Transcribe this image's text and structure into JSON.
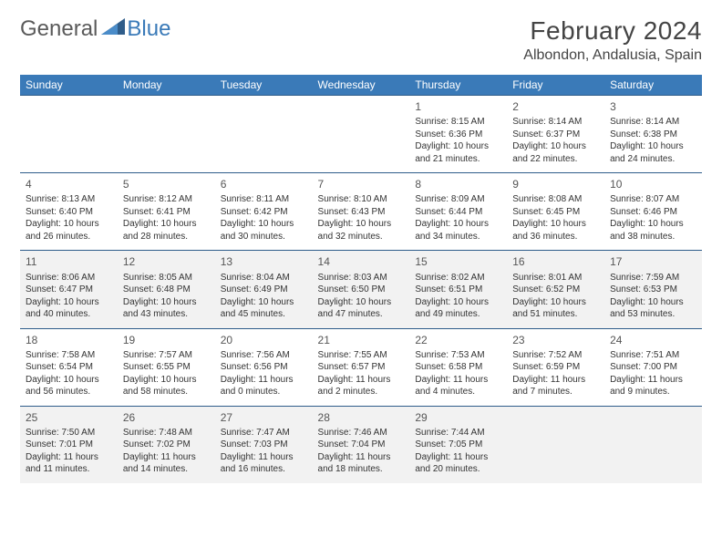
{
  "brand": {
    "general": "General",
    "blue": "Blue"
  },
  "title": "February 2024",
  "location": "Albondon, Andalusia, Spain",
  "day_headers": [
    "Sunday",
    "Monday",
    "Tuesday",
    "Wednesday",
    "Thursday",
    "Friday",
    "Saturday"
  ],
  "colors": {
    "header_bg": "#3a7ab8",
    "rule": "#2f5d8a",
    "shade": "#f2f2f2"
  },
  "weeks": [
    [
      null,
      null,
      null,
      null,
      {
        "n": "1",
        "sr": "8:15 AM",
        "ss": "6:36 PM",
        "dl": "10 hours and 21 minutes."
      },
      {
        "n": "2",
        "sr": "8:14 AM",
        "ss": "6:37 PM",
        "dl": "10 hours and 22 minutes."
      },
      {
        "n": "3",
        "sr": "8:14 AM",
        "ss": "6:38 PM",
        "dl": "10 hours and 24 minutes."
      }
    ],
    [
      {
        "n": "4",
        "sr": "8:13 AM",
        "ss": "6:40 PM",
        "dl": "10 hours and 26 minutes."
      },
      {
        "n": "5",
        "sr": "8:12 AM",
        "ss": "6:41 PM",
        "dl": "10 hours and 28 minutes."
      },
      {
        "n": "6",
        "sr": "8:11 AM",
        "ss": "6:42 PM",
        "dl": "10 hours and 30 minutes."
      },
      {
        "n": "7",
        "sr": "8:10 AM",
        "ss": "6:43 PM",
        "dl": "10 hours and 32 minutes."
      },
      {
        "n": "8",
        "sr": "8:09 AM",
        "ss": "6:44 PM",
        "dl": "10 hours and 34 minutes."
      },
      {
        "n": "9",
        "sr": "8:08 AM",
        "ss": "6:45 PM",
        "dl": "10 hours and 36 minutes."
      },
      {
        "n": "10",
        "sr": "8:07 AM",
        "ss": "6:46 PM",
        "dl": "10 hours and 38 minutes."
      }
    ],
    [
      {
        "n": "11",
        "sr": "8:06 AM",
        "ss": "6:47 PM",
        "dl": "10 hours and 40 minutes."
      },
      {
        "n": "12",
        "sr": "8:05 AM",
        "ss": "6:48 PM",
        "dl": "10 hours and 43 minutes."
      },
      {
        "n": "13",
        "sr": "8:04 AM",
        "ss": "6:49 PM",
        "dl": "10 hours and 45 minutes."
      },
      {
        "n": "14",
        "sr": "8:03 AM",
        "ss": "6:50 PM",
        "dl": "10 hours and 47 minutes."
      },
      {
        "n": "15",
        "sr": "8:02 AM",
        "ss": "6:51 PM",
        "dl": "10 hours and 49 minutes."
      },
      {
        "n": "16",
        "sr": "8:01 AM",
        "ss": "6:52 PM",
        "dl": "10 hours and 51 minutes."
      },
      {
        "n": "17",
        "sr": "7:59 AM",
        "ss": "6:53 PM",
        "dl": "10 hours and 53 minutes."
      }
    ],
    [
      {
        "n": "18",
        "sr": "7:58 AM",
        "ss": "6:54 PM",
        "dl": "10 hours and 56 minutes."
      },
      {
        "n": "19",
        "sr": "7:57 AM",
        "ss": "6:55 PM",
        "dl": "10 hours and 58 minutes."
      },
      {
        "n": "20",
        "sr": "7:56 AM",
        "ss": "6:56 PM",
        "dl": "11 hours and 0 minutes."
      },
      {
        "n": "21",
        "sr": "7:55 AM",
        "ss": "6:57 PM",
        "dl": "11 hours and 2 minutes."
      },
      {
        "n": "22",
        "sr": "7:53 AM",
        "ss": "6:58 PM",
        "dl": "11 hours and 4 minutes."
      },
      {
        "n": "23",
        "sr": "7:52 AM",
        "ss": "6:59 PM",
        "dl": "11 hours and 7 minutes."
      },
      {
        "n": "24",
        "sr": "7:51 AM",
        "ss": "7:00 PM",
        "dl": "11 hours and 9 minutes."
      }
    ],
    [
      {
        "n": "25",
        "sr": "7:50 AM",
        "ss": "7:01 PM",
        "dl": "11 hours and 11 minutes."
      },
      {
        "n": "26",
        "sr": "7:48 AM",
        "ss": "7:02 PM",
        "dl": "11 hours and 14 minutes."
      },
      {
        "n": "27",
        "sr": "7:47 AM",
        "ss": "7:03 PM",
        "dl": "11 hours and 16 minutes."
      },
      {
        "n": "28",
        "sr": "7:46 AM",
        "ss": "7:04 PM",
        "dl": "11 hours and 18 minutes."
      },
      {
        "n": "29",
        "sr": "7:44 AM",
        "ss": "7:05 PM",
        "dl": "11 hours and 20 minutes."
      },
      null,
      null
    ]
  ],
  "labels": {
    "sunrise": "Sunrise:",
    "sunset": "Sunset:",
    "daylight": "Daylight:"
  },
  "shaded_rows": [
    2,
    4
  ]
}
